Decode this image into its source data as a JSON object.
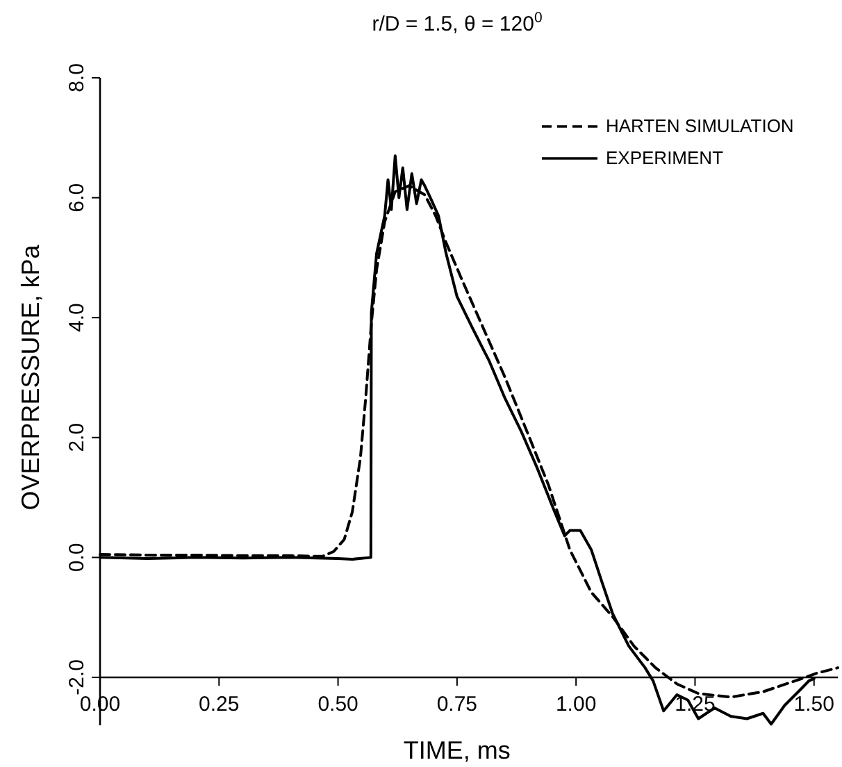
{
  "chart_data": {
    "type": "line",
    "title": "r/D = 1.5, θ = 120$^{0}$",
    "xlabel": "TIME, ms",
    "ylabel": "OVERPRESSURE, kPa",
    "xlim": [
      0,
      1.55
    ],
    "ylim": [
      -2.8,
      8
    ],
    "xticks": [
      {
        "value": 0,
        "label": "0.00"
      },
      {
        "value": 0.25,
        "label": "0.25"
      },
      {
        "value": 0.5,
        "label": "0.50"
      },
      {
        "value": 0.75,
        "label": "0.75"
      },
      {
        "value": 1,
        "label": "1.00"
      },
      {
        "value": 1.25,
        "label": "1.25"
      },
      {
        "value": 1.5,
        "label": "1.50"
      }
    ],
    "yticks": [
      {
        "value": -2,
        "label": "-2.0"
      },
      {
        "value": 0,
        "label": "0.0"
      },
      {
        "value": 2,
        "label": "2.0"
      },
      {
        "value": 4,
        "label": "4.0"
      },
      {
        "value": 6,
        "label": "6.0"
      },
      {
        "value": 8,
        "label": "8.0"
      }
    ],
    "grid": false,
    "legend": "top right",
    "marker": "none",
    "series": [
      {
        "name": "HARTEN SIMULATION",
        "color": "#000000",
        "line_style": "dashed",
        "x": [
          0,
          0.1,
          0.2,
          0.3,
          0.4,
          0.45,
          0.468,
          0.491,
          0.513,
          0.53,
          0.547,
          0.558,
          0.57,
          0.581,
          0.598,
          0.62,
          0.649,
          0.682,
          0.705,
          0.727,
          0.761,
          0.806,
          0.851,
          0.897,
          0.942,
          0.987,
          1.032,
          1.077,
          1.122,
          1.167,
          1.212,
          1.257,
          1.325,
          1.393,
          1.46,
          1.506,
          1.55
        ],
        "values": [
          0.05,
          0.04,
          0.04,
          0.03,
          0.03,
          0.02,
          0.02,
          0.1,
          0.3,
          0.76,
          1.66,
          2.65,
          3.9,
          4.8,
          5.6,
          6.1,
          6.2,
          6.05,
          5.7,
          5.25,
          4.62,
          3.81,
          3,
          2.1,
          1.21,
          0.13,
          -0.58,
          -0.99,
          -1.48,
          -1.84,
          -2.11,
          -2.27,
          -2.33,
          -2.24,
          -2.06,
          -1.93,
          -1.84
        ]
      },
      {
        "name": "EXPERIMENT",
        "color": "#000000",
        "line_style": "solid",
        "x": [
          0,
          0.1,
          0.2,
          0.3,
          0.4,
          0.5,
          0.53,
          0.569,
          0.57,
          0.581,
          0.598,
          0.605,
          0.612,
          0.62,
          0.628,
          0.636,
          0.645,
          0.655,
          0.665,
          0.675,
          0.682,
          0.694,
          0.711,
          0.727,
          0.75,
          0.784,
          0.818,
          0.851,
          0.885,
          0.919,
          0.953,
          0.976,
          0.987,
          1.009,
          1.032,
          1.054,
          1.077,
          1.111,
          1.145,
          1.162,
          1.184,
          1.212,
          1.235,
          1.257,
          1.291,
          1.325,
          1.359,
          1.393,
          1.41,
          1.438,
          1.472,
          1.489,
          1.5
        ],
        "values": [
          0,
          -0.02,
          0,
          -0.01,
          0,
          -0.02,
          -0.03,
          0,
          4.08,
          5.07,
          5.7,
          6.3,
          5.8,
          6.7,
          6,
          6.5,
          5.8,
          6.4,
          5.9,
          6.3,
          6.2,
          6,
          5.7,
          5.07,
          4.35,
          3.8,
          3.27,
          2.65,
          2.1,
          1.48,
          0.8,
          0.36,
          0.45,
          0.45,
          0.13,
          -0.4,
          -0.94,
          -1.48,
          -1.84,
          -2.06,
          -2.56,
          -2.29,
          -2.38,
          -2.69,
          -2.51,
          -2.65,
          -2.69,
          -2.6,
          -2.78,
          -2.47,
          -2.2,
          -2.06,
          -2.02
        ]
      }
    ]
  }
}
